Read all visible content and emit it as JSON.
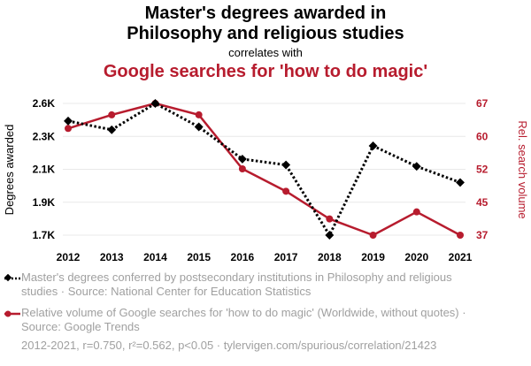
{
  "header": {
    "title_line1": "Master's degrees awarded in",
    "title_line2": "Philosophy and religious studies",
    "connector": "correlates with",
    "title2": "Google searches for 'how to do magic'"
  },
  "legend": {
    "series1_text": "Master's degrees conferred by postsecondary institutions in Philosophy and religious studies · Source: National Center for Education Statistics",
    "series2_text": "Relative volume of Google searches for 'how to do magic' (Worldwide, without quotes) · Source: Google Trends"
  },
  "footer": {
    "text": "2012-2021, r=0.750, r²=0.562, p<0.05 · tylervigen.com/spurious/correlation/21423"
  },
  "colors": {
    "series1": "#000000",
    "series2": "#b71c2e",
    "grid": "#e8e8e8"
  },
  "chart_data": {
    "type": "line",
    "x": [
      "2012",
      "2013",
      "2014",
      "2015",
      "2016",
      "2017",
      "2018",
      "2019",
      "2020",
      "2021"
    ],
    "ylabel_left": "Degrees awarded",
    "ylabel_right": "Rel. search volume",
    "left_axis": {
      "ticks": [
        1700,
        1900,
        2100,
        2300,
        2600
      ],
      "tick_labels": [
        "1.7K",
        "1.9K",
        "2.1K",
        "2.3K",
        "2.6K"
      ],
      "range": [
        1700,
        2600
      ]
    },
    "right_axis": {
      "ticks": [
        37,
        45,
        52,
        60,
        67
      ],
      "tick_labels": [
        "37",
        "45",
        "52",
        "60",
        "67"
      ],
      "range": [
        37,
        67
      ]
    },
    "grid": true,
    "legend_placement": "bottom",
    "series": [
      {
        "name": "Master's degrees conferred by postsecondary institutions in Philosophy and religious studies",
        "axis": "left",
        "style": "dotted",
        "marker": "diamond",
        "values": [
          2480,
          2420,
          2600,
          2440,
          2220,
          2180,
          1700,
          2310,
          2170,
          2060
        ]
      },
      {
        "name": "Relative volume of Google searches for 'how to do magic'",
        "axis": "right",
        "style": "solid",
        "marker": "circle",
        "values": [
          61.3,
          64.4,
          67,
          64.4,
          52.1,
          47,
          40.7,
          37,
          42.3,
          37
        ]
      }
    ]
  }
}
